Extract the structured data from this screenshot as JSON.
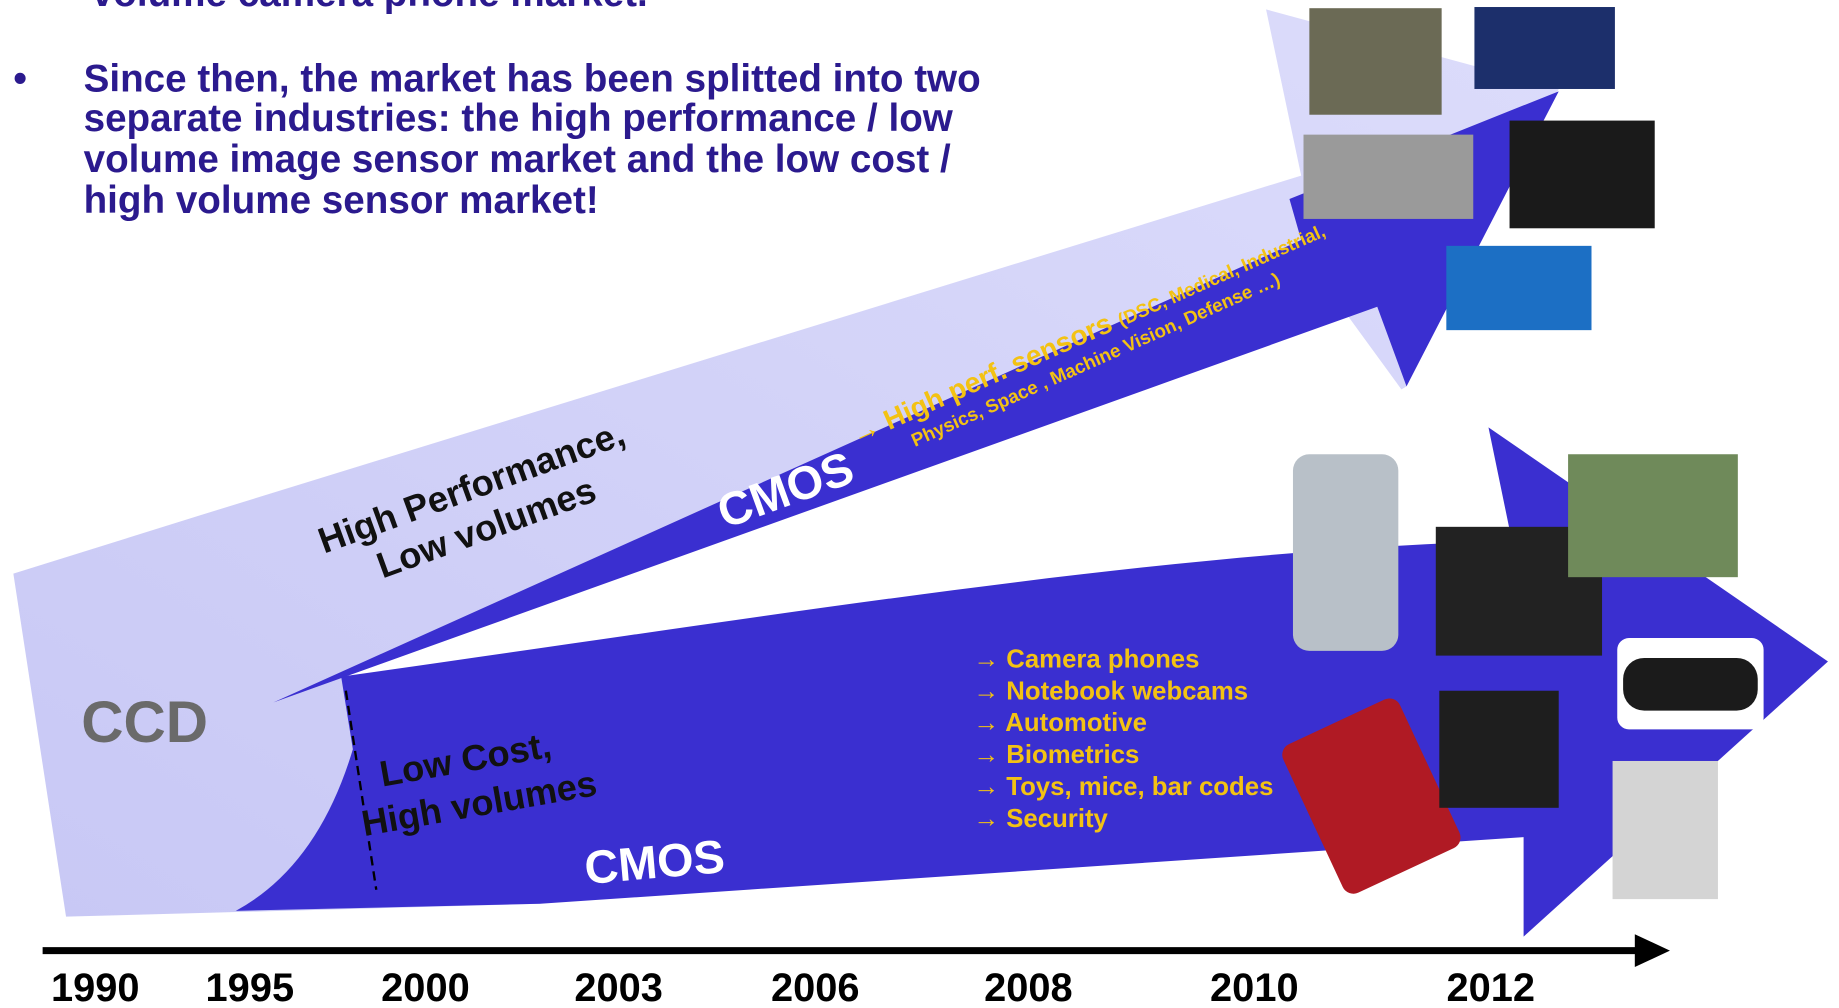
{
  "bullets": [
    {
      "lines": [
        "volume camera phone market."
      ]
    },
    {
      "lines": [
        "Since then, the market has been splitted into two",
        "separate industries: the high performance / low",
        "volume image sensor market and the low cost /",
        "high volume sensor market!"
      ]
    }
  ],
  "upper": {
    "label_lines": [
      "High Performance,",
      "Low volumes"
    ],
    "cmos": "CMOS",
    "arrow_title": "→ High perf. sensors",
    "arrow_detail_lines": [
      "(DSC, Medical, Industrial,",
      "Physics, Space , Machine Vision, Defense …)"
    ]
  },
  "ccd": "CCD",
  "lower": {
    "label_lines": [
      "Low Cost,",
      "High volumes"
    ],
    "cmos": "CMOS",
    "applications": [
      "→ Camera phones",
      " → Notebook webcams",
      "→ Automotive",
      "→ Biometrics",
      "→ Toys, mice, bar codes",
      "→ Security"
    ]
  },
  "timeline": [
    "1990",
    "1995",
    "2000",
    "2003",
    "2006",
    "2008",
    "2010",
    "2012"
  ]
}
